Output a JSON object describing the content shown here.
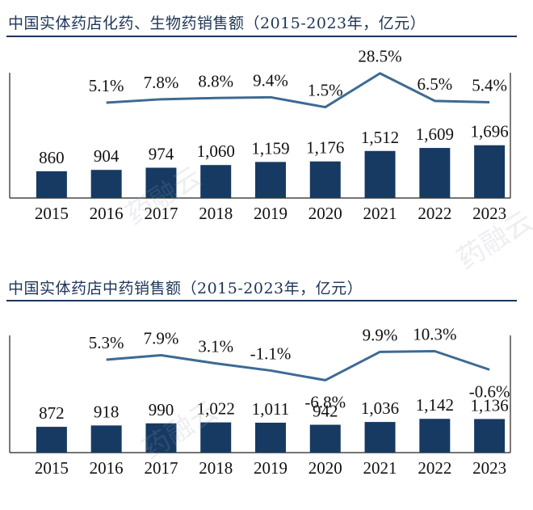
{
  "colors": {
    "bar": "#173a63",
    "line": "#3d6a93",
    "title": "#1d3557",
    "axis": "#222222"
  },
  "watermark": "药融云",
  "chart_data": [
    {
      "type": "bar",
      "title": "中国实体药店化药、生物药销售额（2015-2023年，亿元）",
      "categories": [
        "2015",
        "2016",
        "2017",
        "2018",
        "2019",
        "2020",
        "2021",
        "2022",
        "2023"
      ],
      "values": [
        860,
        904,
        974,
        1060,
        1159,
        1176,
        1512,
        1609,
        1696
      ],
      "value_labels": [
        "860",
        "904",
        "974",
        "1,060",
        "1,159",
        "1,176",
        "1,512",
        "1,609",
        "1,696"
      ],
      "growth": [
        null,
        5.1,
        7.8,
        8.8,
        9.4,
        1.5,
        28.5,
        6.5,
        5.4
      ],
      "growth_labels": [
        "",
        "5.1%",
        "7.8%",
        "8.8%",
        "9.4%",
        "1.5%",
        "28.5%",
        "6.5%",
        "5.4%"
      ],
      "xlabel": "",
      "ylabel": ""
    },
    {
      "type": "bar",
      "title": "中国实体药店中药销售额（2015-2023年，亿元）",
      "categories": [
        "2015",
        "2016",
        "2017",
        "2018",
        "2019",
        "2020",
        "2021",
        "2022",
        "2023"
      ],
      "values": [
        872,
        918,
        990,
        1022,
        1011,
        942,
        1036,
        1142,
        1136
      ],
      "value_labels": [
        "872",
        "918",
        "990",
        "1,022",
        "1,011",
        "942",
        "1,036",
        "1,142",
        "1,136"
      ],
      "growth": [
        null,
        5.3,
        7.9,
        3.1,
        -1.1,
        -6.8,
        9.9,
        10.3,
        -0.6
      ],
      "growth_labels": [
        "",
        "5.3%",
        "7.9%",
        "3.1%",
        "-1.1%",
        "-6.8%",
        "9.9%",
        "10.3%",
        "-0.6%"
      ],
      "xlabel": "",
      "ylabel": ""
    }
  ]
}
